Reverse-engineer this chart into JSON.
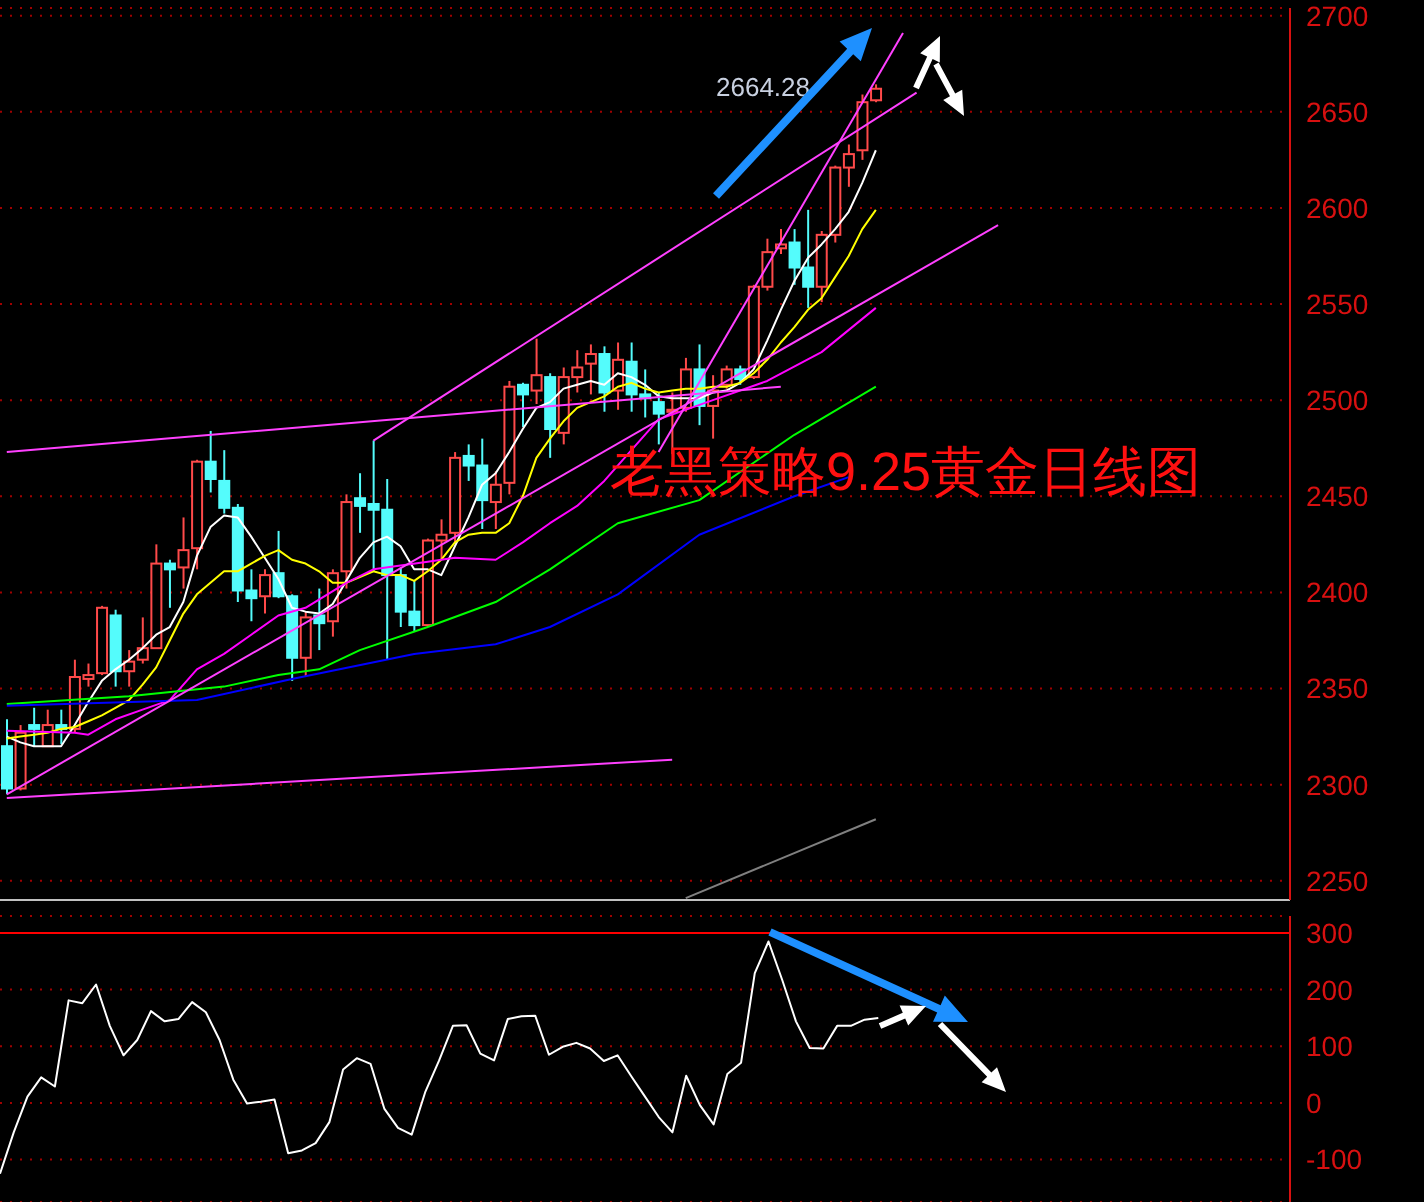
{
  "chart_data": [
    {
      "type": "candlestick",
      "title": "老黑策略9.25黄金日线图",
      "annotations": [
        "2664.28"
      ],
      "categories": [
        null,
        null,
        null,
        null,
        null,
        null,
        null,
        null,
        null,
        null,
        null,
        null,
        null,
        null,
        null,
        null,
        null,
        null,
        null,
        null,
        null,
        null,
        null,
        null,
        null,
        null,
        null,
        null,
        null,
        null,
        null,
        null,
        null,
        null,
        null,
        null,
        null,
        null,
        null,
        null,
        null,
        null,
        null,
        null,
        null,
        null,
        null,
        null,
        null,
        null,
        null,
        null,
        null,
        null,
        null,
        null,
        null,
        null,
        null,
        null,
        null,
        null,
        null,
        null,
        null,
        null,
        null,
        null,
        null,
        null,
        null,
        null,
        null,
        null,
        null,
        null,
        null,
        null,
        null,
        null,
        null,
        null,
        null,
        null,
        null,
        null,
        null,
        null,
        null,
        null,
        null,
        null,
        null,
        null,
        null
      ],
      "ohlc": [
        [
          2320,
          2334,
          2295,
          2298
        ],
        [
          2298,
          2331,
          2297,
          2327
        ],
        [
          2331,
          2340,
          2320,
          2329
        ],
        [
          2320,
          2339,
          2320,
          2331
        ],
        [
          2331,
          2339,
          2321,
          2329
        ],
        [
          2329,
          2365,
          2327,
          2356
        ],
        [
          2355,
          2363,
          2351,
          2357
        ],
        [
          2358,
          2393,
          2357,
          2392
        ],
        [
          2388,
          2391,
          2351,
          2359
        ],
        [
          2359,
          2370,
          2351,
          2364
        ],
        [
          2365,
          2387,
          2363,
          2371
        ],
        [
          2371,
          2425,
          2371,
          2415
        ],
        [
          2415,
          2417,
          2392,
          2412
        ],
        [
          2413,
          2439,
          2402,
          2422
        ],
        [
          2423,
          2469,
          2412,
          2468
        ],
        [
          2468,
          2484,
          2452,
          2459
        ],
        [
          2458,
          2474,
          2441,
          2444
        ],
        [
          2444,
          2446,
          2395,
          2401
        ],
        [
          2401,
          2412,
          2385,
          2397
        ],
        [
          2398,
          2412,
          2389,
          2409
        ],
        [
          2410,
          2432,
          2397,
          2398
        ],
        [
          2398,
          2399,
          2354,
          2366
        ],
        [
          2366,
          2390,
          2356,
          2387
        ],
        [
          2388,
          2402,
          2370,
          2384
        ],
        [
          2385,
          2412,
          2377,
          2410
        ],
        [
          2411,
          2451,
          2402,
          2447
        ],
        [
          2449,
          2462,
          2431,
          2445
        ],
        [
          2446,
          2479,
          2411,
          2443
        ],
        [
          2443,
          2459,
          2365,
          2409
        ],
        [
          2409,
          2413,
          2382,
          2390
        ],
        [
          2390,
          2406,
          2380,
          2383
        ],
        [
          2383,
          2428,
          2382,
          2427
        ],
        [
          2427,
          2438,
          2417,
          2430
        ],
        [
          2431,
          2473,
          2426,
          2470
        ],
        [
          2471,
          2477,
          2458,
          2466
        ],
        [
          2466,
          2480,
          2433,
          2448
        ],
        [
          2447,
          2463,
          2433,
          2456
        ],
        [
          2457,
          2510,
          2451,
          2507
        ],
        [
          2508,
          2509,
          2486,
          2503
        ],
        [
          2505,
          2532,
          2498,
          2513
        ],
        [
          2512,
          2514,
          2470,
          2485
        ],
        [
          2483,
          2517,
          2477,
          2512
        ],
        [
          2512,
          2526,
          2504,
          2517
        ],
        [
          2519,
          2529,
          2503,
          2524
        ],
        [
          2524,
          2528,
          2494,
          2504
        ],
        [
          2505,
          2530,
          2495,
          2521
        ],
        [
          2520,
          2530,
          2494,
          2503
        ],
        [
          2503,
          2516,
          2491,
          2501
        ],
        [
          2499,
          2504,
          2477,
          2493
        ],
        [
          2494,
          2504,
          2472,
          2495
        ],
        [
          2496,
          2522,
          2494,
          2516
        ],
        [
          2516,
          2529,
          2487,
          2497
        ],
        [
          2497,
          2513,
          2480,
          2505
        ],
        [
          2508,
          2518,
          2506,
          2516
        ],
        [
          2516,
          2518,
          2508,
          2511
        ],
        [
          2512,
          2560,
          2511,
          2559
        ],
        [
          2559,
          2584,
          2557,
          2577
        ],
        [
          2579,
          2589,
          2576,
          2581
        ],
        [
          2582,
          2589,
          2560,
          2569
        ],
        [
          2569,
          2599,
          2548,
          2559
        ],
        [
          2559,
          2588,
          2551,
          2586
        ],
        [
          2586,
          2622,
          2582,
          2621
        ],
        [
          2621,
          2633,
          2611,
          2628
        ],
        [
          2630,
          2659,
          2625,
          2655
        ],
        [
          2656,
          2664.28,
          2655,
          2662
        ],
        null,
        null,
        null,
        null,
        null,
        null,
        null,
        null,
        null,
        null,
        null,
        null,
        null,
        null,
        null,
        null,
        null,
        null,
        null,
        null,
        null,
        null,
        null,
        null,
        null,
        null,
        null,
        null,
        null,
        null
      ],
      "series": [
        {
          "type": "line",
          "color": "#ffffff",
          "values": [
            2325,
            2322,
            2320,
            2320,
            2320,
            2331,
            2343,
            2354,
            2360,
            2365,
            2371,
            2378,
            2382,
            2395,
            2419,
            2434,
            2440,
            2439,
            2429,
            2418,
            2407,
            2392,
            2390,
            2389,
            2394,
            2406,
            2418,
            2426,
            2429,
            2424,
            2412,
            2412,
            2409,
            2424,
            2439,
            2456,
            2462,
            2473,
            2485,
            2496,
            2499,
            2506,
            2508,
            2510,
            2508,
            2514,
            2512,
            2508,
            2502,
            2501,
            2501,
            2501,
            2504,
            2505,
            2509,
            2516,
            2531,
            2547,
            2562,
            2574,
            2581,
            2589,
            2598,
            2613,
            2630,
            null,
            null,
            null,
            null,
            null,
            null,
            null,
            null,
            null,
            null,
            null,
            null,
            null,
            null,
            null,
            null,
            null,
            null,
            null,
            null,
            null,
            null,
            null,
            null,
            null,
            null,
            null,
            null,
            null,
            null
          ]
        },
        {
          "type": "line",
          "color": "#ffff00",
          "values": [
            2324,
            2325,
            2326,
            2327,
            2329,
            2330,
            2333,
            2336,
            2340,
            2344,
            2352,
            2361,
            2375,
            2389,
            2399,
            2405,
            2411,
            2411,
            2415,
            2419,
            2422,
            2417,
            2415,
            2411,
            2405,
            2405,
            2408,
            2411,
            2409,
            2409,
            2406,
            2411,
            2417,
            2426,
            2430,
            2431,
            2431,
            2436,
            2450,
            2470,
            2480,
            2489,
            2496,
            2499,
            2502,
            2507,
            2509,
            2506,
            2504,
            2505,
            2506,
            2506,
            2507,
            2507,
            2509,
            2514,
            2521,
            2530,
            2538,
            2547,
            2553,
            2564,
            2575,
            2589,
            2599,
            null,
            null,
            null,
            null,
            null,
            null,
            null,
            null,
            null,
            null,
            null,
            null,
            null,
            null,
            null,
            null,
            null,
            null,
            null,
            null,
            null,
            null,
            null,
            null,
            null,
            null,
            null,
            null,
            null,
            null
          ]
        },
        {
          "type": "line",
          "color": "#ff00ff",
          "values": [
            2328,
            null,
            null,
            null,
            null,
            2327,
            2326,
            null,
            2334,
            null,
            2339,
            null,
            2344,
            null,
            2360,
            null,
            2368,
            null,
            2378,
            null,
            2388,
            null,
            2392,
            null,
            null,
            2405,
            null,
            2412,
            null,
            2414,
            null,
            2416,
            null,
            2418,
            null,
            null,
            2417,
            null,
            2426,
            null,
            2436,
            null,
            2445,
            null,
            2458,
            null,
            null,
            null,
            2490,
            null,
            null,
            null,
            2500,
            null,
            null,
            null,
            2510,
            null,
            null,
            null,
            2525,
            null,
            null,
            null,
            2548,
            null,
            null,
            null,
            null,
            null,
            null,
            null,
            null,
            null,
            null,
            null,
            null,
            null,
            null,
            null,
            null,
            null,
            null,
            null,
            null,
            null,
            null,
            null,
            null,
            null,
            null,
            null,
            null,
            null,
            null
          ]
        },
        {
          "type": "line",
          "color": "#00ff00",
          "values": [
            2342,
            null,
            null,
            null,
            null,
            null,
            null,
            null,
            null,
            2346,
            null,
            null,
            null,
            null,
            null,
            null,
            2351,
            null,
            null,
            null,
            2357,
            null,
            null,
            2360,
            null,
            null,
            2370,
            null,
            null,
            null,
            null,
            2382,
            null,
            null,
            null,
            null,
            2395,
            null,
            null,
            null,
            2412,
            null,
            null,
            null,
            null,
            2436,
            null,
            null,
            null,
            null,
            null,
            2448,
            null,
            null,
            null,
            null,
            null,
            null,
            2482,
            null,
            null,
            null,
            null,
            null,
            2507,
            null,
            null,
            null,
            null,
            null,
            null,
            null,
            null,
            null,
            null,
            null,
            null,
            null,
            null,
            null,
            null,
            null,
            null,
            null,
            null,
            null,
            null,
            null,
            null,
            null,
            null,
            null,
            null,
            null,
            null
          ]
        },
        {
          "type": "line",
          "color": "#0000ff",
          "values": [
            2341,
            null,
            null,
            null,
            null,
            null,
            null,
            null,
            null,
            null,
            null,
            null,
            null,
            null,
            2344,
            null,
            null,
            null,
            null,
            null,
            null,
            2355,
            null,
            null,
            null,
            null,
            null,
            null,
            null,
            null,
            2368,
            null,
            null,
            null,
            null,
            null,
            2373,
            null,
            null,
            null,
            2382,
            null,
            null,
            null,
            null,
            2399,
            null,
            null,
            null,
            null,
            null,
            2430,
            null,
            null,
            null,
            null,
            null,
            null,
            2450,
            null,
            null,
            null,
            2460,
            null,
            null,
            null,
            null,
            null,
            null,
            null,
            null,
            null,
            null,
            null,
            null,
            null,
            null,
            null,
            null,
            null,
            null,
            null,
            null,
            null,
            null,
            null,
            null,
            null,
            null,
            null,
            null,
            null,
            null,
            null,
            null
          ]
        },
        {
          "type": "line",
          "color": "#ff40ff",
          "values": [
            2473,
            null,
            null,
            null,
            null,
            null,
            null,
            null,
            null,
            null,
            null,
            null,
            null,
            null,
            null,
            null,
            null,
            null,
            null,
            null,
            null,
            null,
            null,
            null,
            null,
            null,
            null,
            null,
            null,
            null,
            null,
            null,
            null,
            null,
            null,
            null,
            null,
            null,
            null,
            null,
            null,
            null,
            null,
            null,
            null,
            null,
            null,
            null,
            null,
            null,
            null,
            null,
            null,
            null,
            null,
            null,
            null,
            2507,
            null,
            null,
            null,
            null,
            null,
            null,
            null,
            null,
            null,
            null,
            null,
            null,
            null,
            null,
            null,
            null,
            null,
            null,
            null,
            null,
            null,
            null,
            null,
            null,
            null,
            null,
            null,
            null,
            null,
            null,
            null,
            null,
            null,
            null,
            null,
            null,
            null
          ]
        },
        {
          "type": "line",
          "color": "#ff40ff",
          "values": [
            2293,
            null,
            null,
            null,
            null,
            null,
            null,
            null,
            null,
            null,
            null,
            null,
            null,
            null,
            null,
            null,
            null,
            null,
            null,
            null,
            null,
            null,
            null,
            null,
            null,
            null,
            null,
            null,
            null,
            null,
            null,
            null,
            null,
            null,
            null,
            null,
            null,
            null,
            null,
            null,
            null,
            null,
            null,
            null,
            null,
            null,
            null,
            null,
            null,
            2313,
            null,
            null,
            null,
            null,
            null,
            null,
            null,
            null,
            null,
            null,
            null,
            null,
            null,
            null,
            null,
            null,
            null,
            null,
            null,
            null,
            null,
            null,
            null,
            null,
            null,
            null,
            null,
            null,
            null,
            null,
            null,
            null,
            null,
            null,
            null,
            null,
            null,
            null,
            null,
            null,
            null,
            null,
            null,
            null,
            null
          ]
        },
        {
          "type": "line",
          "color": "#ff40ff",
          "values": [
            2295,
            null,
            null,
            null,
            null,
            null,
            null,
            null,
            null,
            null,
            null,
            null,
            null,
            null,
            null,
            null,
            null,
            null,
            null,
            null,
            null,
            null,
            null,
            null,
            null,
            null,
            null,
            null,
            null,
            null,
            null,
            null,
            null,
            null,
            null,
            null,
            null,
            null,
            null,
            null,
            null,
            null,
            null,
            null,
            null,
            null,
            null,
            null,
            null,
            null,
            null,
            null,
            null,
            null,
            null,
            null,
            null,
            null,
            null,
            null,
            null,
            null,
            null,
            null,
            null,
            null,
            null,
            null,
            null,
            null,
            null,
            null,
            null,
            2591,
            null,
            null,
            null,
            null,
            null,
            null,
            null,
            null,
            null,
            null,
            null,
            null,
            null,
            null,
            null,
            null,
            null,
            null,
            null,
            null,
            null
          ]
        },
        {
          "type": "line",
          "color": "#ff40ff",
          "values": [
            null,
            null,
            null,
            null,
            null,
            null,
            null,
            null,
            null,
            null,
            null,
            null,
            null,
            null,
            null,
            null,
            null,
            null,
            null,
            null,
            null,
            null,
            null,
            null,
            null,
            null,
            null,
            2479,
            null,
            null,
            null,
            null,
            null,
            null,
            null,
            null,
            null,
            null,
            null,
            null,
            null,
            null,
            null,
            null,
            null,
            null,
            null,
            null,
            null,
            null,
            null,
            null,
            null,
            null,
            null,
            null,
            null,
            null,
            null,
            null,
            null,
            null,
            null,
            null,
            null,
            null,
            null,
            2660,
            null,
            null,
            null,
            null,
            null,
            null,
            null,
            null,
            null,
            null,
            null,
            null,
            null,
            null,
            null,
            null,
            null,
            null,
            null,
            null,
            null,
            null,
            null,
            null,
            null,
            null,
            null
          ]
        },
        {
          "type": "line",
          "color": "#ff40ff",
          "values": [
            null,
            null,
            null,
            null,
            null,
            null,
            null,
            null,
            null,
            null,
            null,
            null,
            null,
            null,
            null,
            null,
            null,
            null,
            null,
            null,
            null,
            null,
            null,
            null,
            null,
            null,
            null,
            null,
            null,
            null,
            null,
            null,
            null,
            null,
            null,
            null,
            null,
            null,
            null,
            null,
            null,
            null,
            null,
            null,
            null,
            null,
            null,
            null,
            2473,
            null,
            null,
            null,
            null,
            null,
            null,
            null,
            null,
            null,
            null,
            null,
            null,
            null,
            null,
            null,
            null,
            null,
            2691,
            null,
            null,
            null,
            null,
            null,
            null,
            null,
            null,
            null,
            null,
            null,
            null,
            null,
            null,
            null,
            null,
            null,
            null,
            null,
            null,
            null,
            null,
            null,
            null,
            null,
            null,
            null,
            null
          ]
        },
        {
          "type": "line",
          "color": "#808080",
          "values": [
            null,
            null,
            null,
            null,
            null,
            null,
            null,
            null,
            null,
            null,
            null,
            null,
            null,
            null,
            null,
            null,
            null,
            null,
            null,
            null,
            null,
            null,
            null,
            null,
            null,
            null,
            null,
            null,
            null,
            null,
            null,
            null,
            null,
            null,
            null,
            null,
            null,
            null,
            null,
            null,
            null,
            null,
            null,
            null,
            null,
            null,
            null,
            null,
            null,
            null,
            2241,
            null,
            null,
            null,
            null,
            null,
            null,
            null,
            null,
            null,
            null,
            null,
            null,
            null,
            2282,
            null,
            null,
            null,
            null,
            null,
            null,
            null,
            null,
            null,
            null,
            null,
            null,
            null,
            null,
            null,
            null,
            null,
            null,
            null,
            null,
            null,
            null,
            null,
            null,
            null,
            null,
            null,
            null,
            null,
            null
          ]
        }
      ],
      "ylim": [
        2240,
        2704
      ],
      "yticks": [
        2250,
        2300,
        2350,
        2400,
        2450,
        2500,
        2550,
        2600,
        2650,
        2700
      ],
      "grid": "y",
      "tick_labels": "y",
      "marker": "none"
    },
    {
      "type": "line",
      "categories": [
        null,
        null,
        null,
        null,
        null,
        null,
        null,
        null,
        null,
        null,
        null,
        null,
        null,
        null,
        null,
        null,
        null,
        null,
        null,
        null,
        null,
        null,
        null,
        null,
        null,
        null,
        null,
        null,
        null,
        null,
        null,
        null,
        null,
        null,
        null,
        null,
        null,
        null,
        null,
        null,
        null,
        null,
        null,
        null,
        null,
        null,
        null,
        null,
        null,
        null,
        null,
        null,
        null,
        null,
        null,
        null,
        null,
        null,
        null,
        null,
        null,
        null,
        null,
        null,
        null,
        null,
        null,
        null,
        null,
        null,
        null,
        null,
        null,
        null,
        null,
        null,
        null,
        null,
        null,
        null,
        null,
        null,
        null,
        null,
        null,
        null,
        null,
        null,
        null,
        null,
        null,
        null,
        null,
        null,
        null
      ],
      "series": [
        {
          "color": "#ffffff",
          "values": [
            -125,
            -52,
            11,
            45,
            29,
            181,
            176,
            209,
            136,
            84,
            111,
            162,
            144,
            148,
            178,
            160,
            111,
            41,
            -1,
            2,
            6,
            -89,
            -84,
            -71,
            -34,
            59,
            79,
            69,
            -10,
            -44,
            -56,
            20,
            75,
            136,
            137,
            87,
            75,
            148,
            153,
            154,
            85,
            99,
            106,
            96,
            74,
            84,
            47,
            11,
            -25,
            -52,
            48,
            -4,
            -38,
            51,
            71,
            229,
            285,
            217,
            144,
            97,
            96,
            136,
            136,
            147,
            150,
            null,
            null,
            null,
            null,
            null,
            null,
            null,
            null,
            null,
            null,
            null,
            null,
            null,
            null,
            null,
            null,
            null,
            null,
            null,
            null,
            null,
            null,
            null,
            null,
            null,
            null,
            null,
            null,
            null,
            null
          ]
        }
      ],
      "ylim": [
        -175,
        330
      ],
      "yticks": [
        -100,
        0,
        100,
        200,
        300
      ],
      "ref_lines": [
        {
          "axis": "y",
          "value": 300,
          "color": "#ff0000"
        }
      ],
      "grid": "y",
      "tick_labels": "y",
      "marker": "none"
    }
  ]
}
